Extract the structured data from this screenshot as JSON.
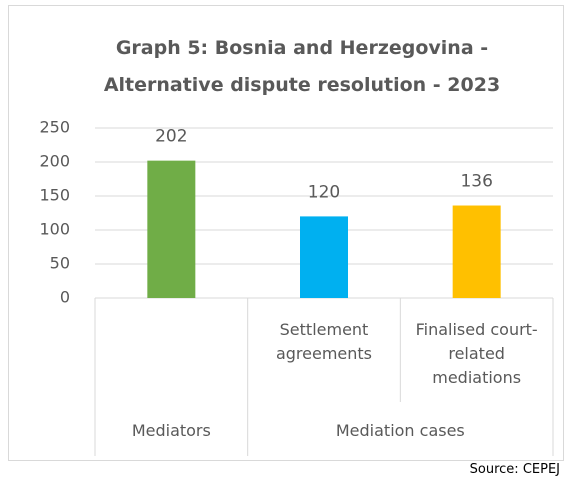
{
  "chart_data": {
    "type": "bar",
    "title": "Graph 5: Bosnia and Herzegovina  - Alternative dispute resolution - 2023",
    "categories": [
      null,
      "Settlement agreements",
      "Finalised court-related mediations"
    ],
    "groups": [
      {
        "name": "Mediators",
        "span": 1
      },
      {
        "name": "Mediation cases",
        "span": 2
      }
    ],
    "values": [
      202,
      120,
      136
    ],
    "colors": [
      "#70ad47",
      "#00b0f0",
      "#ffc000"
    ],
    "ylim": [
      0,
      250
    ],
    "yticks": [
      0,
      50,
      100,
      150,
      200,
      250
    ],
    "grid": true,
    "source": "Source: CEPEJ"
  }
}
